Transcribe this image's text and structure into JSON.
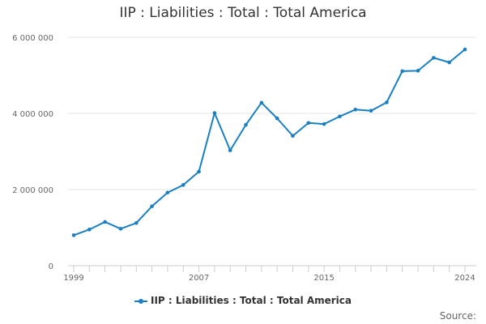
{
  "chart_data": {
    "type": "line",
    "title": "IIP : Liabilities : Total : Total America",
    "xlabel": "",
    "ylabel": "",
    "x": [
      1999,
      2000,
      2001,
      2002,
      2003,
      2004,
      2005,
      2006,
      2007,
      2008,
      2009,
      2010,
      2011,
      2012,
      2013,
      2014,
      2015,
      2016,
      2017,
      2018,
      2019,
      2020,
      2021,
      2022,
      2023,
      2024
    ],
    "series": [
      {
        "name": "IIP : Liabilities : Total : Total America",
        "values": [
          800000,
          950000,
          1150000,
          970000,
          1120000,
          1560000,
          1920000,
          2120000,
          2470000,
          4010000,
          3030000,
          3700000,
          4280000,
          3870000,
          3410000,
          3750000,
          3720000,
          3920000,
          4100000,
          4070000,
          4290000,
          5110000,
          5120000,
          5460000,
          5340000,
          5680000
        ]
      }
    ],
    "xticks": [
      "1999",
      "2007",
      "2015",
      "2024"
    ],
    "yticks": [
      "0",
      "2 000 000",
      "4 000 000",
      "6 000 000"
    ],
    "ylim": [
      0,
      6000000
    ],
    "xlim": [
      1999,
      2024
    ],
    "grid": true,
    "legend_position": "bottom",
    "line_color": "#1a7fc1"
  },
  "legend": {
    "label": "IIP : Liabilities : Total : Total America"
  },
  "footer": {
    "source_label": "Source:"
  }
}
